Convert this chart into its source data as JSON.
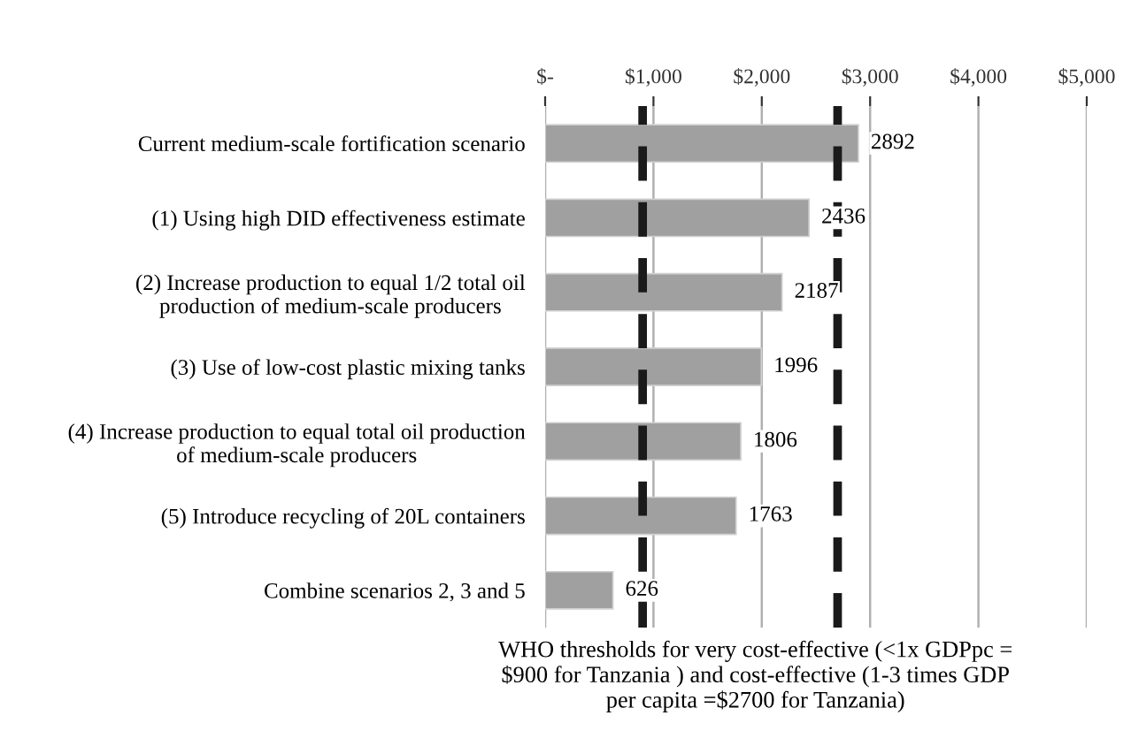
{
  "chart_data": {
    "type": "bar",
    "orientation": "horizontal",
    "categories": [
      "Current medium-scale fortification scenario",
      "(1) Using high DID effectiveness estimate",
      "(2) Increase production to equal 1/2 total oil\nproduction of medium-scale producers",
      "(3) Use of low-cost plastic mixing tanks",
      "(4) Increase production to equal total oil production\nof medium-scale producers",
      "(5) Introduce recycling of 20L containers",
      "Combine scenarios 2, 3 and 5"
    ],
    "values": [
      2892,
      2436,
      2187,
      1996,
      1806,
      1763,
      626
    ],
    "color": "#a0a0a0",
    "data_labels": true,
    "xlim": [
      0,
      5000
    ],
    "xticks": [
      {
        "value": 0,
        "label": "$-"
      },
      {
        "value": 1000,
        "label": "$1,000"
      },
      {
        "value": 2000,
        "label": "$2,000"
      },
      {
        "value": 3000,
        "label": "$3,000"
      },
      {
        "value": 4000,
        "label": "$4,000"
      },
      {
        "value": 5000,
        "label": "$5,000"
      }
    ],
    "grid": "x",
    "ref_lines": [
      {
        "axis": "x",
        "value": 900,
        "color": "#1a1a1a",
        "line_style": "dashed"
      },
      {
        "axis": "x",
        "value": 2700,
        "color": "#1a1a1a",
        "line_style": "dashed"
      }
    ],
    "annotations": [
      "WHO thresholds for very cost-effective (<1x GDPpc =\n$900 for Tanzania ) and cost-effective (1-3 times GDP\nper capita =$2700 for Tanzania)"
    ]
  }
}
